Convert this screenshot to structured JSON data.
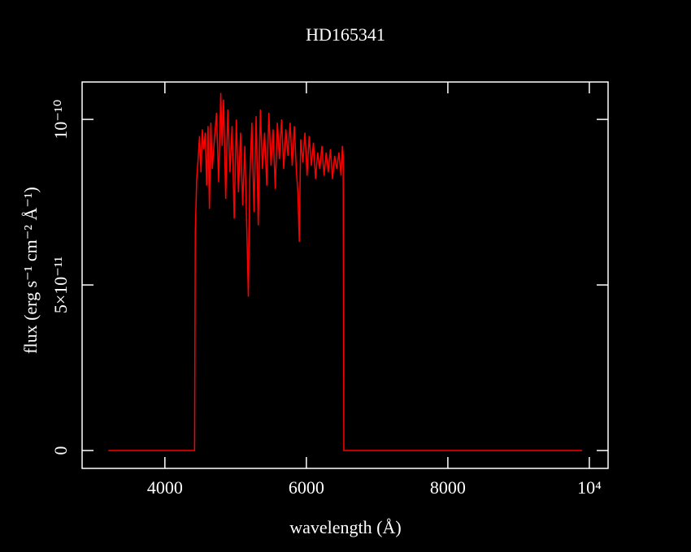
{
  "chart_data": {
    "type": "line",
    "title": "HD165341",
    "x_label": "wavelength (Å)",
    "y_label": "flux (erg s⁻¹ cm⁻² Å⁻¹)",
    "color": "#ff0000",
    "x": [
      3200,
      4420,
      4430,
      4450,
      4470,
      4490,
      4510,
      4530,
      4550,
      4570,
      4590,
      4610,
      4630,
      4650,
      4670,
      4700,
      4730,
      4760,
      4790,
      4810,
      4830,
      4860,
      4890,
      4920,
      4950,
      4980,
      5010,
      5040,
      5070,
      5100,
      5130,
      5160,
      5180,
      5200,
      5230,
      5260,
      5290,
      5320,
      5350,
      5380,
      5410,
      5440,
      5470,
      5500,
      5530,
      5560,
      5590,
      5620,
      5650,
      5680,
      5710,
      5740,
      5770,
      5800,
      5830,
      5860,
      5880,
      5900,
      5920,
      5950,
      5980,
      6010,
      6040,
      6070,
      6100,
      6130,
      6160,
      6190,
      6220,
      6250,
      6280,
      6310,
      6340,
      6370,
      6400,
      6430,
      6460,
      6490,
      6510,
      6520,
      6530,
      9900
    ],
    "values": [
      0,
      0,
      6.6e-11,
      8.2e-11,
      8.8e-11,
      9.5e-11,
      8.4e-11,
      9.7e-11,
      9.1e-11,
      9.6e-11,
      8e-11,
      9.8e-11,
      7.3e-11,
      9.9e-11,
      8.5e-11,
      9.4e-11,
      1.02e-10,
      8.1e-11,
      1.08e-10,
      9.2e-11,
      1.06e-10,
      7.6e-11,
      1.03e-10,
      8.4e-11,
      9.8e-11,
      7e-11,
      1e-10,
      7.8e-11,
      9.6e-11,
      7.4e-11,
      9.2e-11,
      6.5e-11,
      4.65e-11,
      8.2e-11,
      9.9e-11,
      7.2e-11,
      1.01e-10,
      6.8e-11,
      1.03e-10,
      8.5e-11,
      9.6e-11,
      8e-11,
      1.02e-10,
      8.6e-11,
      9.7e-11,
      7.9e-11,
      9.9e-11,
      8.8e-11,
      1e-10,
      8.5e-11,
      9.7e-11,
      8.9e-11,
      9.9e-11,
      8.6e-11,
      9.8e-11,
      8.4e-11,
      7.8e-11,
      6.3e-11,
      9.4e-11,
      8.7e-11,
      9.6e-11,
      8.3e-11,
      9.5e-11,
      8.6e-11,
      9.3e-11,
      8.2e-11,
      9e-11,
      8.5e-11,
      9.2e-11,
      8.3e-11,
      9e-11,
      8.4e-11,
      9.1e-11,
      8.2e-11,
      8.9e-11,
      8.5e-11,
      9e-11,
      8.3e-11,
      9.2e-11,
      8.9e-11,
      0,
      0
    ],
    "xlim": [
      2830,
      10265
    ],
    "xticks": [
      4000,
      6000,
      8000,
      {
        "value": 10000,
        "label": "10⁴"
      }
    ],
    "ylim": [
      -5.4e-12,
      1.113e-10
    ],
    "yticks": [
      0,
      {
        "value": 5e-11,
        "label": "5×10⁻¹¹"
      },
      {
        "value": 1e-10,
        "label": "10⁻¹⁰"
      }
    ]
  }
}
